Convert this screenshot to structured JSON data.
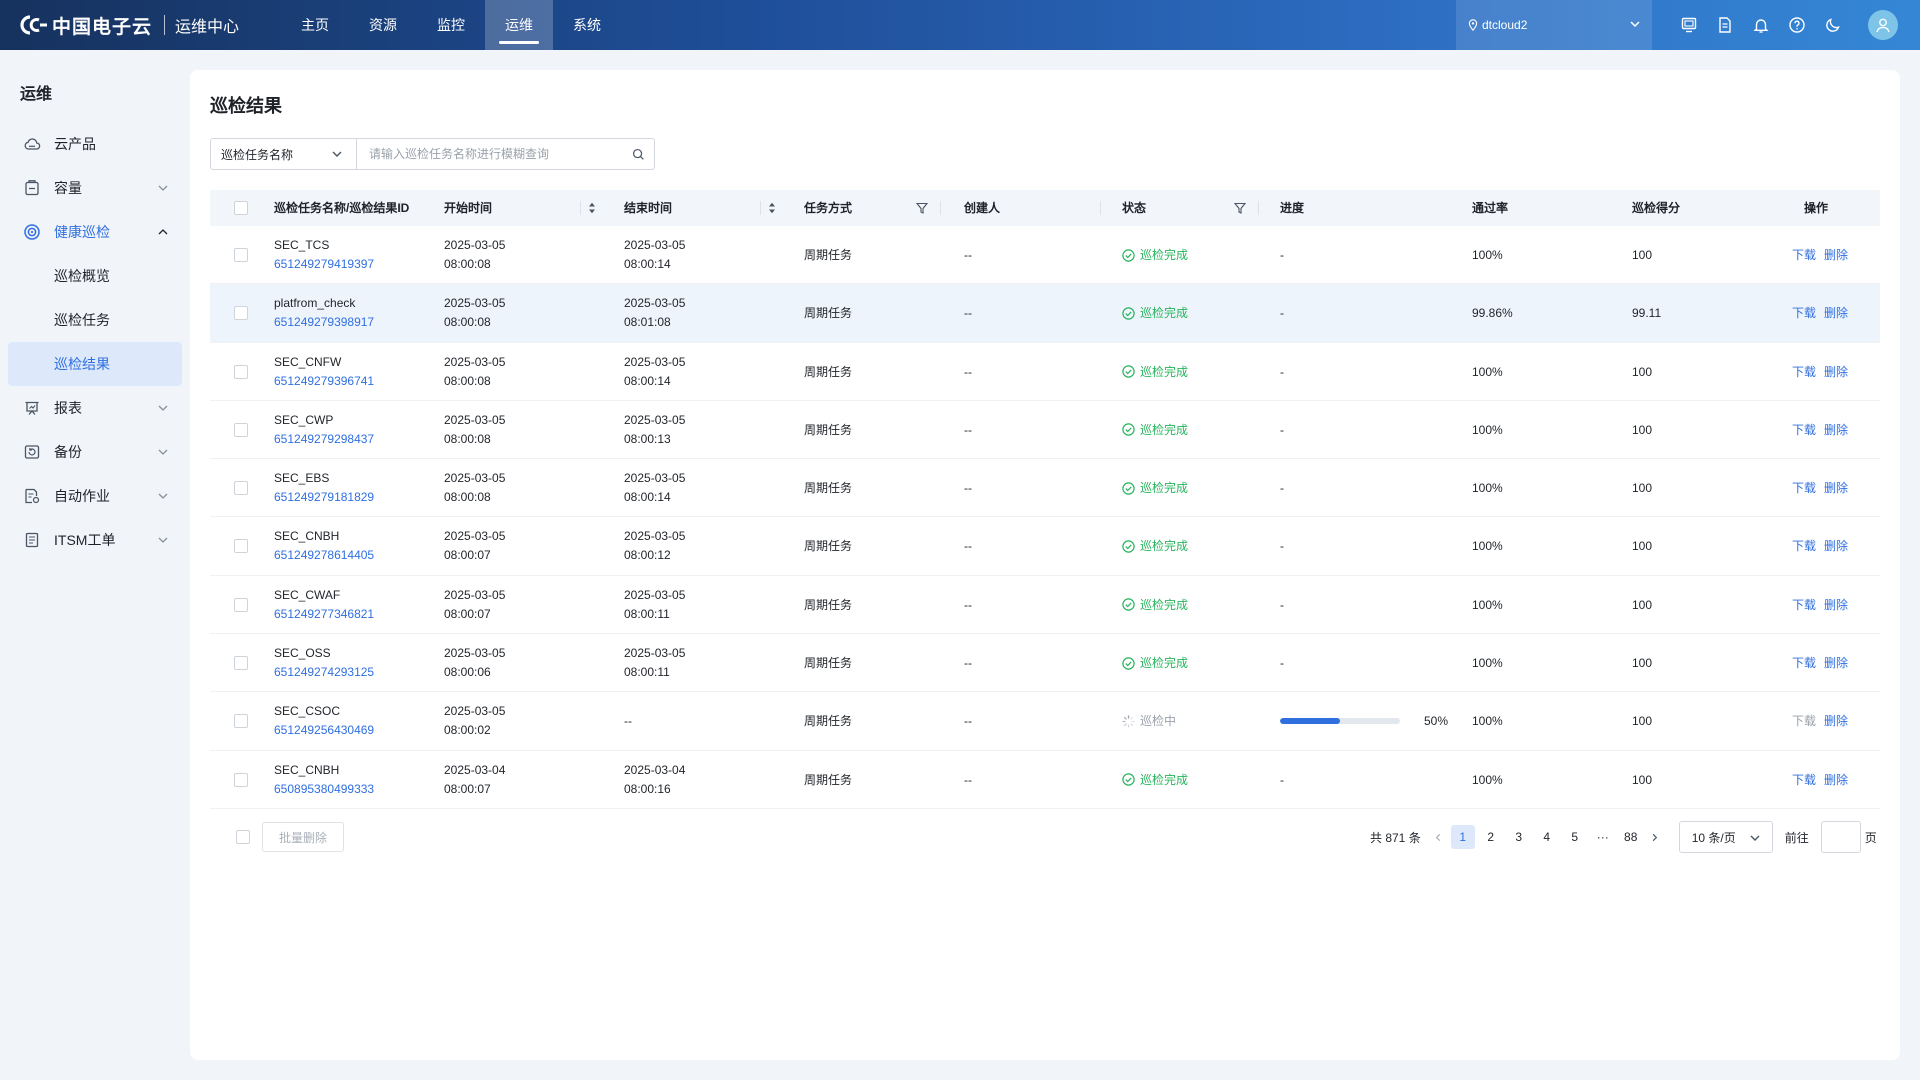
{
  "header": {
    "logo_text": "中国电子云",
    "product": "运维中心",
    "nav": [
      {
        "label": "主页",
        "active": false
      },
      {
        "label": "资源",
        "active": false
      },
      {
        "label": "监控",
        "active": false
      },
      {
        "label": "运维",
        "active": true
      },
      {
        "label": "系统",
        "active": false
      }
    ],
    "region": "dtcloud2",
    "icons": [
      "monitor-icon",
      "document-icon",
      "bell-icon",
      "help-icon",
      "moon-icon",
      "user-icon"
    ]
  },
  "sidebar": {
    "title": "运维",
    "items": [
      {
        "label": "云产品",
        "icon": "cloud-icon",
        "expandable": false
      },
      {
        "label": "容量",
        "icon": "capacity-icon",
        "expandable": true
      },
      {
        "label": "健康巡检",
        "icon": "health-icon",
        "expandable": true,
        "open": true
      },
      {
        "label": "报表",
        "icon": "report-icon",
        "expandable": true
      },
      {
        "label": "备份",
        "icon": "backup-icon",
        "expandable": true
      },
      {
        "label": "自动作业",
        "icon": "automation-icon",
        "expandable": true
      },
      {
        "label": "ITSM工单",
        "icon": "ticket-icon",
        "expandable": true
      }
    ],
    "subitems": [
      {
        "label": "巡检概览",
        "active": false
      },
      {
        "label": "巡检任务",
        "active": false
      },
      {
        "label": "巡检结果",
        "active": true
      }
    ]
  },
  "main": {
    "title": "巡检结果",
    "search": {
      "field": "巡检任务名称",
      "placeholder": "请输入巡检任务名称进行模糊查询"
    },
    "columns": {
      "name": "巡检任务名称/巡检结果ID",
      "start": "开始时间",
      "end": "结束时间",
      "mode": "任务方式",
      "creator": "创建人",
      "status": "状态",
      "progress": "进度",
      "pass_rate": "通过率",
      "score": "巡检得分",
      "ops": "操作"
    },
    "rows": [
      {
        "name": "SEC_TCS",
        "id": "651249279419397",
        "start_date": "2025-03-05",
        "start_time": "08:00:08",
        "end_date": "2025-03-05",
        "end_time": "08:00:14",
        "mode": "周期任务",
        "creator": "--",
        "status": "巡检完成",
        "status_type": "done",
        "progress": "-",
        "progress_value": null,
        "pass_rate": "100%",
        "score": "100",
        "download": "下载",
        "delete": "删除"
      },
      {
        "name": "platfrom_check",
        "id": "651249279398917",
        "start_date": "2025-03-05",
        "start_time": "08:00:08",
        "end_date": "2025-03-05",
        "end_time": "08:01:08",
        "mode": "周期任务",
        "creator": "--",
        "status": "巡检完成",
        "status_type": "done",
        "progress": "-",
        "progress_value": null,
        "pass_rate": "99.86%",
        "score": "99.11",
        "download": "下载",
        "delete": "删除"
      },
      {
        "name": "SEC_CNFW",
        "id": "651249279396741",
        "start_date": "2025-03-05",
        "start_time": "08:00:08",
        "end_date": "2025-03-05",
        "end_time": "08:00:14",
        "mode": "周期任务",
        "creator": "--",
        "status": "巡检完成",
        "status_type": "done",
        "progress": "-",
        "progress_value": null,
        "pass_rate": "100%",
        "score": "100",
        "download": "下载",
        "delete": "删除"
      },
      {
        "name": "SEC_CWP",
        "id": "651249279298437",
        "start_date": "2025-03-05",
        "start_time": "08:00:08",
        "end_date": "2025-03-05",
        "end_time": "08:00:13",
        "mode": "周期任务",
        "creator": "--",
        "status": "巡检完成",
        "status_type": "done",
        "progress": "-",
        "progress_value": null,
        "pass_rate": "100%",
        "score": "100",
        "download": "下载",
        "delete": "删除"
      },
      {
        "name": "SEC_EBS",
        "id": "651249279181829",
        "start_date": "2025-03-05",
        "start_time": "08:00:08",
        "end_date": "2025-03-05",
        "end_time": "08:00:14",
        "mode": "周期任务",
        "creator": "--",
        "status": "巡检完成",
        "status_type": "done",
        "progress": "-",
        "progress_value": null,
        "pass_rate": "100%",
        "score": "100",
        "download": "下载",
        "delete": "删除"
      },
      {
        "name": "SEC_CNBH",
        "id": "651249278614405",
        "start_date": "2025-03-05",
        "start_time": "08:00:07",
        "end_date": "2025-03-05",
        "end_time": "08:00:12",
        "mode": "周期任务",
        "creator": "--",
        "status": "巡检完成",
        "status_type": "done",
        "progress": "-",
        "progress_value": null,
        "pass_rate": "100%",
        "score": "100",
        "download": "下载",
        "delete": "删除"
      },
      {
        "name": "SEC_CWAF",
        "id": "651249277346821",
        "start_date": "2025-03-05",
        "start_time": "08:00:07",
        "end_date": "2025-03-05",
        "end_time": "08:00:11",
        "mode": "周期任务",
        "creator": "--",
        "status": "巡检完成",
        "status_type": "done",
        "progress": "-",
        "progress_value": null,
        "pass_rate": "100%",
        "score": "100",
        "download": "下载",
        "delete": "删除"
      },
      {
        "name": "SEC_OSS",
        "id": "651249274293125",
        "start_date": "2025-03-05",
        "start_time": "08:00:06",
        "end_date": "2025-03-05",
        "end_time": "08:00:11",
        "mode": "周期任务",
        "creator": "--",
        "status": "巡检完成",
        "status_type": "done",
        "progress": "-",
        "progress_value": null,
        "pass_rate": "100%",
        "score": "100",
        "download": "下载",
        "delete": "删除"
      },
      {
        "name": "SEC_CSOC",
        "id": "651249256430469",
        "start_date": "2025-03-05",
        "start_time": "08:00:02",
        "end_date": "--",
        "end_time": "",
        "mode": "周期任务",
        "creator": "--",
        "status": "巡检中",
        "status_type": "running",
        "progress": "50%",
        "progress_value": 0.5,
        "pass_rate": "100%",
        "score": "100",
        "download": "下载",
        "delete": "删除"
      },
      {
        "name": "SEC_CNBH",
        "id": "650895380499333",
        "start_date": "2025-03-04",
        "start_time": "08:00:07",
        "end_date": "2025-03-04",
        "end_time": "08:00:16",
        "mode": "周期任务",
        "creator": "--",
        "status": "巡检完成",
        "status_type": "done",
        "progress": "-",
        "progress_value": null,
        "pass_rate": "100%",
        "score": "100",
        "download": "下载",
        "delete": "删除"
      }
    ],
    "batch_delete": "批量删除",
    "pagination": {
      "total": "共 871 条",
      "pages": [
        "1",
        "2",
        "3",
        "4",
        "5",
        "···",
        "88"
      ],
      "current": "1",
      "page_size": "10 条/页",
      "goto_label": "前往",
      "goto_value": "",
      "goto_suffix": "页"
    }
  },
  "colors": {
    "primary": "#2f6fe0",
    "success": "#27b45c",
    "header_start": "#16325e",
    "header_end": "#3587d6"
  }
}
